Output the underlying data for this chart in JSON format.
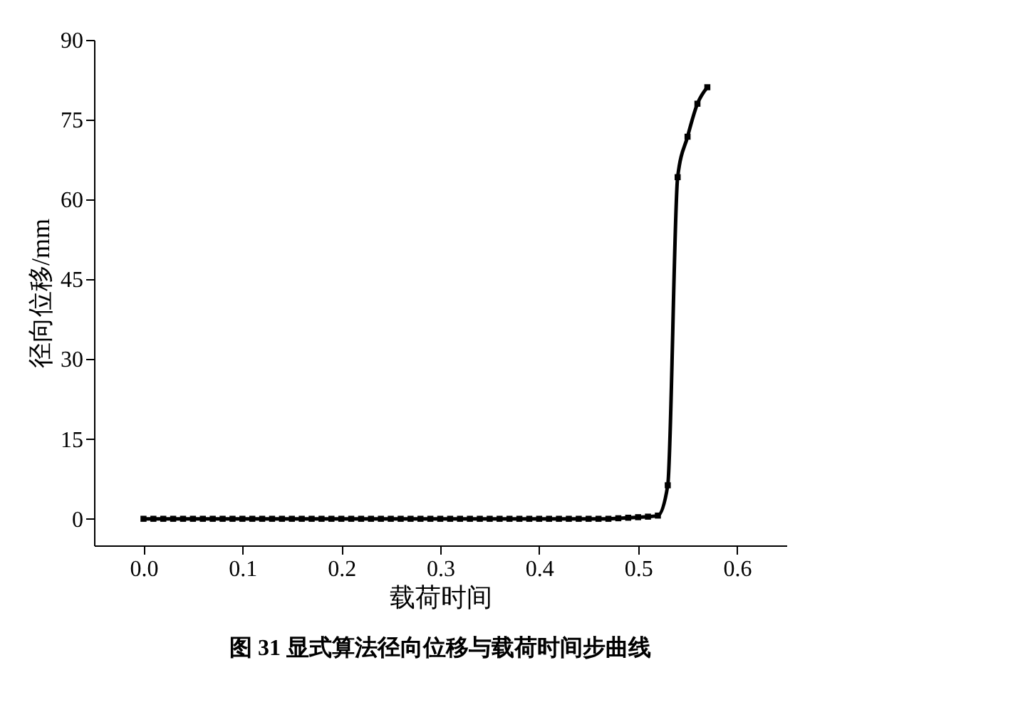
{
  "chart_data": {
    "type": "line",
    "title": "图 31  显式算法径向位移与载荷时间步曲线",
    "xlabel": "载荷时间",
    "ylabel": "径向位移/mm",
    "x": [
      0.0,
      0.01,
      0.02,
      0.03,
      0.04,
      0.05,
      0.06,
      0.07,
      0.08,
      0.09,
      0.1,
      0.11,
      0.12,
      0.13,
      0.14,
      0.15,
      0.16,
      0.17,
      0.18,
      0.19,
      0.2,
      0.21,
      0.22,
      0.23,
      0.24,
      0.25,
      0.26,
      0.27,
      0.28,
      0.29,
      0.3,
      0.31,
      0.32,
      0.33,
      0.34,
      0.35,
      0.36,
      0.37,
      0.38,
      0.39,
      0.4,
      0.41,
      0.42,
      0.43,
      0.44,
      0.45,
      0.46,
      0.47,
      0.48,
      0.49,
      0.5,
      0.51,
      0.52,
      0.53,
      0.54,
      0.55,
      0.56,
      0.57
    ],
    "series": [
      {
        "color": "#000000",
        "values": [
          0,
          0,
          0,
          0,
          0,
          0,
          0,
          0,
          0,
          0,
          0,
          0,
          0,
          0,
          0,
          0,
          0,
          0,
          0,
          0,
          0,
          0,
          0,
          0,
          0,
          0,
          0,
          0,
          0,
          0,
          0,
          0,
          0,
          0,
          0,
          0,
          0,
          0,
          0,
          0,
          0,
          0,
          0,
          0,
          0,
          0,
          0,
          0,
          0.1,
          0.2,
          0.3,
          0.4,
          0.6,
          6.3,
          64.2,
          71.8,
          78,
          81.1
        ]
      }
    ],
    "xlim": [
      -0.05,
      0.65
    ],
    "xticks": [
      {
        "value": 0,
        "label": "0.0"
      },
      {
        "value": 0.1,
        "label": "0.1"
      },
      {
        "value": 0.2,
        "label": "0.2"
      },
      {
        "value": 0.3,
        "label": "0.3"
      },
      {
        "value": 0.4,
        "label": "0.4"
      },
      {
        "value": 0.5,
        "label": "0.5"
      },
      {
        "value": 0.6,
        "label": "0.6"
      }
    ],
    "ylim": [
      -5,
      90
    ],
    "yticks": [
      0,
      15,
      30,
      45,
      60,
      75,
      90
    ],
    "marker": "square",
    "line_style": "solid",
    "grid": false
  }
}
